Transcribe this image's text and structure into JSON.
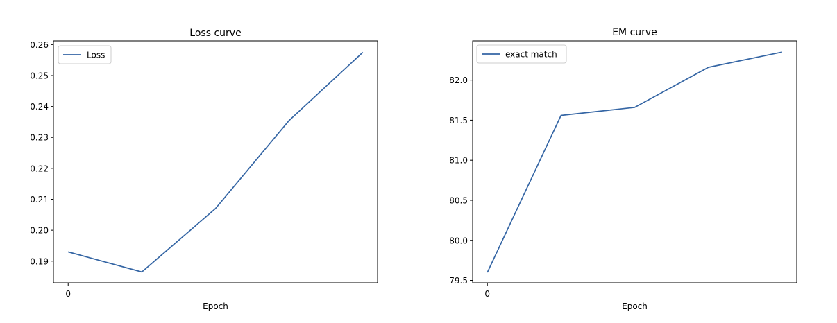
{
  "chart_data": [
    {
      "type": "line",
      "title": "Loss curve",
      "xlabel": "Epoch",
      "ylabel": "",
      "x": [
        0,
        1,
        2,
        3,
        4
      ],
      "series": [
        {
          "name": "Loss",
          "values": [
            0.193,
            0.1865,
            0.207,
            0.2355,
            0.2575
          ],
          "color": "#3465a4"
        }
      ],
      "xticks": [
        0
      ],
      "xtick_labels": [
        "0"
      ],
      "yticks": [
        0.19,
        0.2,
        0.21,
        0.22,
        0.23,
        0.24,
        0.25,
        0.26
      ],
      "ytick_labels": [
        "0.19",
        "0.20",
        "0.21",
        "0.22",
        "0.23",
        "0.24",
        "0.25",
        "0.26"
      ],
      "xlim": [
        -0.2,
        4.2
      ],
      "ylim": [
        0.183,
        0.2612
      ],
      "legend": "upper left",
      "grid": false
    },
    {
      "type": "line",
      "title": "EM curve",
      "xlabel": "Epoch",
      "ylabel": "",
      "x": [
        0,
        1,
        2,
        3,
        4
      ],
      "series": [
        {
          "name": "exact match",
          "values": [
            79.6,
            81.56,
            81.66,
            82.16,
            82.35
          ],
          "color": "#3465a4"
        }
      ],
      "xticks": [
        0
      ],
      "xtick_labels": [
        "0"
      ],
      "yticks": [
        79.5,
        80.0,
        80.5,
        81.0,
        81.5,
        82.0
      ],
      "ytick_labels": [
        "79.5",
        "80.0",
        "80.5",
        "81.0",
        "81.5",
        "82.0"
      ],
      "xlim": [
        -0.2,
        4.2
      ],
      "ylim": [
        79.47,
        82.49
      ],
      "legend": "upper left",
      "grid": false
    }
  ]
}
